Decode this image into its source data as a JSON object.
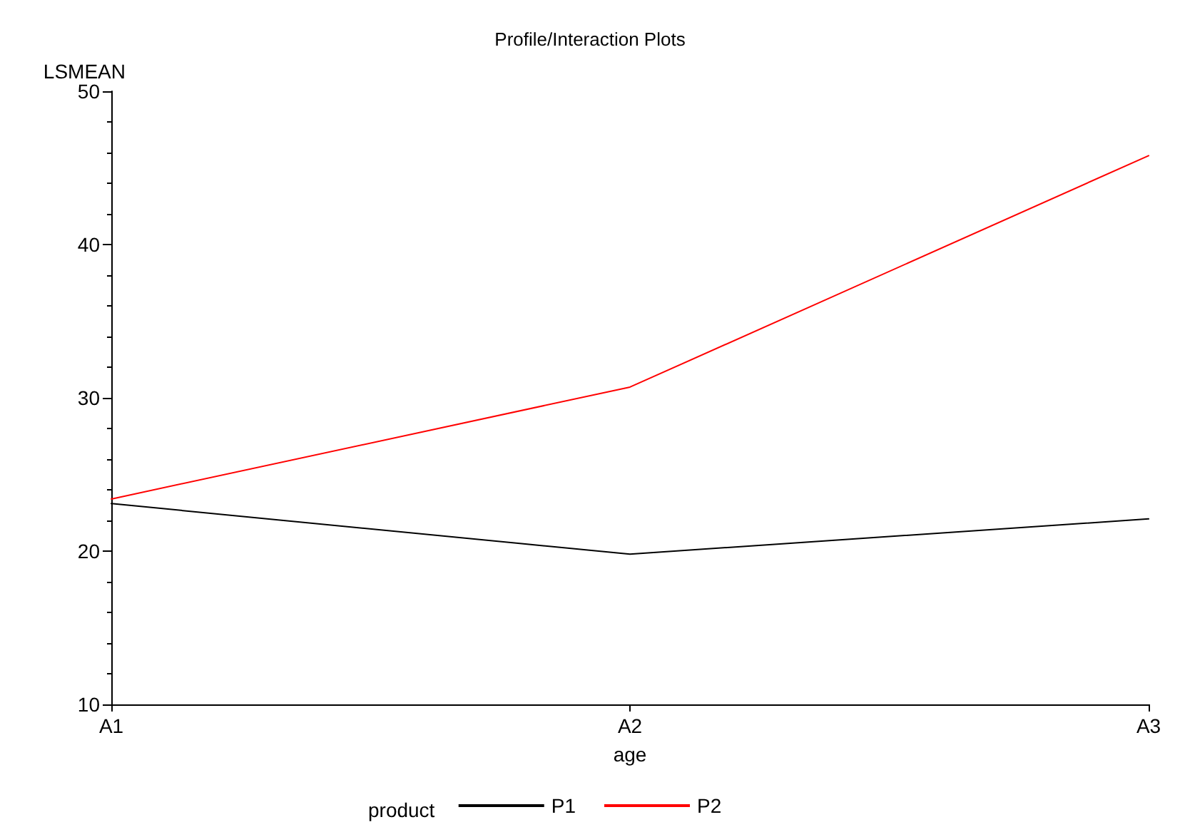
{
  "chart_data": {
    "type": "line",
    "title": "Profile/Interaction Plots",
    "xlabel": "age",
    "ylabel": "LSMEAN",
    "legend_title": "product",
    "categories": [
      "A1",
      "A2",
      "A3"
    ],
    "series": [
      {
        "name": "P1",
        "color": "#000000",
        "values": [
          23.1,
          19.8,
          22.1
        ]
      },
      {
        "name": "P2",
        "color": "#ff0000",
        "values": [
          23.4,
          30.7,
          45.8
        ]
      }
    ],
    "ylim": [
      10,
      50
    ],
    "yticks": [
      10,
      20,
      30,
      40,
      50
    ],
    "grid": false,
    "legend": "bottom",
    "marker": "none",
    "line_style": "solid"
  }
}
